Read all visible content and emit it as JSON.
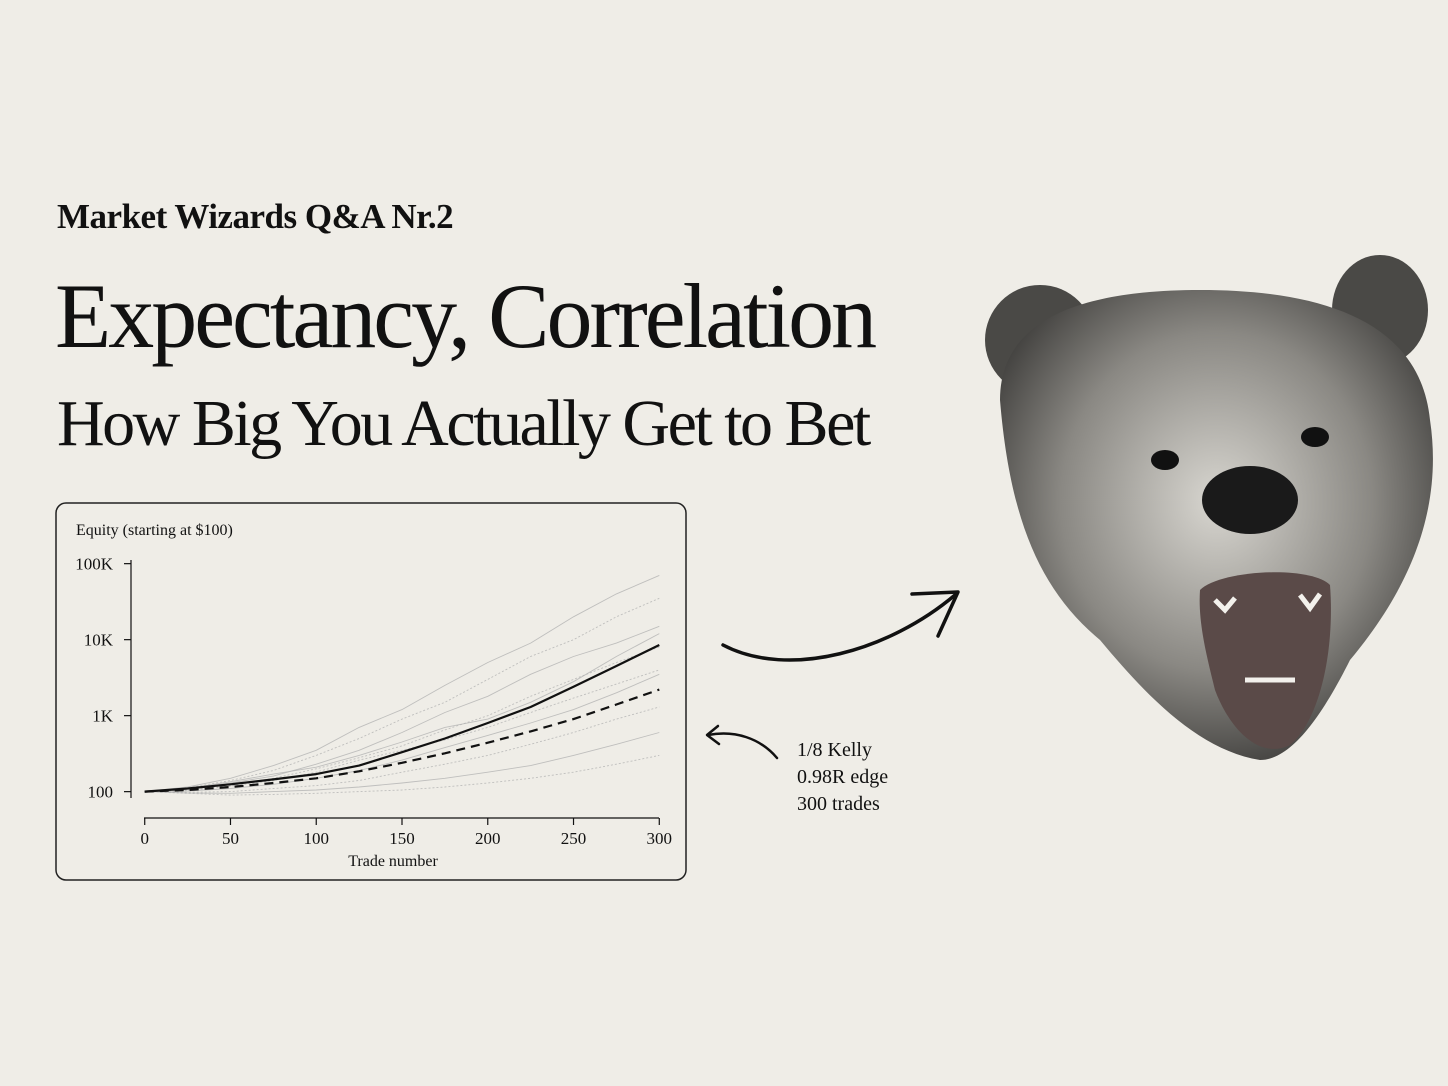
{
  "header": {
    "kicker": "Market Wizards Q&A Nr.2",
    "title_line1": "Expectancy, Correlation",
    "title_line2": "How Big You Actually Get to Bet"
  },
  "annotation": [
    "1/8 Kelly",
    "0.98R edge",
    "300 trades"
  ],
  "chart_data": {
    "type": "line",
    "ylabel": "Equity (starting at $100)",
    "xlabel": "Trade number",
    "yscale": "log",
    "xlim": [
      -8,
      308
    ],
    "ylim": [
      45,
      130000
    ],
    "xticks": [
      0,
      50,
      100,
      150,
      200,
      250,
      300
    ],
    "yticks": [
      100,
      {
        "value": 1000,
        "label": "1K"
      },
      {
        "value": 10000,
        "label": "10K"
      },
      {
        "value": 100000,
        "label": "100K"
      }
    ],
    "x": [
      0,
      25,
      50,
      75,
      100,
      125,
      150,
      175,
      200,
      225,
      250,
      275,
      300
    ],
    "series": [
      {
        "color": "#b3b3b3",
        "style": "solid",
        "values": [
          100,
          115,
          150,
          220,
          350,
          700,
          1200,
          2500,
          5000,
          9000,
          20000,
          40000,
          70000
        ]
      },
      {
        "color": "#b3b3b3",
        "style": "dotted",
        "values": [
          100,
          112,
          140,
          190,
          300,
          500,
          900,
          1500,
          3000,
          6000,
          10000,
          20000,
          35000
        ]
      },
      {
        "color": "#b3b3b3",
        "style": "solid",
        "values": [
          100,
          108,
          130,
          160,
          230,
          350,
          600,
          1100,
          1800,
          3500,
          6000,
          9000,
          15000
        ]
      },
      {
        "color": "#b3b3b3",
        "style": "dotted",
        "values": [
          100,
          105,
          120,
          150,
          200,
          280,
          400,
          650,
          1000,
          1800,
          3000,
          5000,
          8000
        ]
      },
      {
        "color": "#b3b3b3",
        "style": "solid",
        "values": [
          100,
          102,
          110,
          125,
          150,
          190,
          260,
          380,
          550,
          800,
          1200,
          2000,
          3500
        ]
      },
      {
        "color": "#b3b3b3",
        "style": "dotted",
        "values": [
          100,
          98,
          100,
          110,
          120,
          140,
          180,
          230,
          300,
          420,
          600,
          900,
          1300
        ]
      },
      {
        "color": "#b3b3b3",
        "style": "solid",
        "values": [
          100,
          96,
          95,
          100,
          105,
          115,
          130,
          150,
          180,
          220,
          300,
          420,
          600
        ]
      },
      {
        "color": "#b3b3b3",
        "style": "dotted",
        "values": [
          100,
          95,
          90,
          92,
          95,
          100,
          105,
          115,
          130,
          150,
          180,
          230,
          300
        ]
      },
      {
        "color": "#b3b3b3",
        "style": "solid",
        "values": [
          100,
          110,
          135,
          170,
          210,
          300,
          450,
          700,
          900,
          1500,
          2800,
          6000,
          12000
        ]
      },
      {
        "color": "#b3b3b3",
        "style": "dotted",
        "values": [
          100,
          103,
          118,
          140,
          180,
          260,
          350,
          480,
          700,
          1100,
          1700,
          2600,
          4000
        ]
      },
      {
        "color": "#111111",
        "style": "dashed",
        "values": [
          100,
          105,
          115,
          130,
          150,
          185,
          240,
          320,
          440,
          620,
          900,
          1400,
          2200
        ]
      },
      {
        "color": "#111111",
        "style": "solid",
        "values": [
          100,
          110,
          125,
          145,
          170,
          220,
          330,
          500,
          800,
          1300,
          2400,
          4500,
          8500
        ]
      }
    ]
  }
}
